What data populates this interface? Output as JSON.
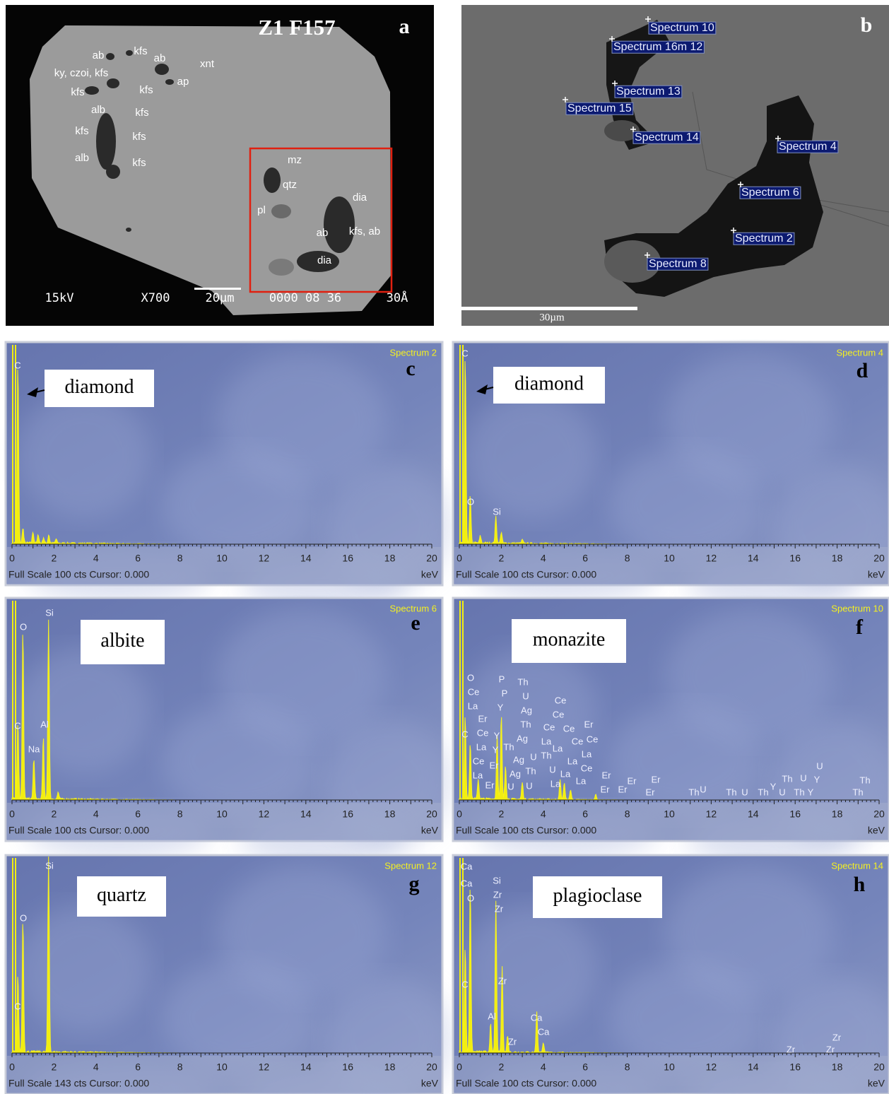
{
  "panel_a": {
    "title": "Z1 F157",
    "letter": "a",
    "labels": [
      "ab",
      "kfs",
      "ab",
      "xnt",
      "ky, czoi, kfs",
      "kfs",
      "kfs",
      "ap",
      "alb",
      "kfs",
      "kfs",
      "kfs",
      "alb",
      "kfs",
      "mz",
      "qtz",
      "pl",
      "dia",
      "ab",
      "kfs, ab",
      "dia"
    ],
    "footer": [
      "15kV",
      "X700",
      "20µm",
      "0000 08 36",
      "30Å"
    ]
  },
  "panel_b": {
    "letter": "b",
    "labels": [
      "Spectrum 10",
      "Spectrum 16m 12",
      "Spectrum 13",
      "Spectrum 15",
      "Spectrum 14",
      "Spectrum 4",
      "Spectrum 6",
      "Spectrum 2",
      "Spectrum 8"
    ],
    "scale": "30µm"
  },
  "spectra": [
    {
      "letter": "c",
      "spectrum": "Spectrum 2",
      "mineral": "diamond",
      "peak_labels": [
        "C"
      ],
      "x_ticks": [
        0,
        2,
        4,
        6,
        8,
        10,
        12,
        14,
        16,
        18,
        20
      ],
      "unit": "keV",
      "footer": "Full Scale 100 cts Cursor: 0.000"
    },
    {
      "letter": "d",
      "spectrum": "Spectrum 4",
      "mineral": "diamond",
      "peak_labels": [
        "C",
        "O",
        "Si"
      ],
      "x_ticks": [
        0,
        2,
        4,
        6,
        8,
        10,
        12,
        14,
        16,
        18,
        20
      ],
      "unit": "keV",
      "footer": "Full Scale 100 cts Cursor: 0.000"
    },
    {
      "letter": "e",
      "spectrum": "Spectrum 6",
      "mineral": "albite",
      "peak_labels": [
        "Si",
        "O",
        "C",
        "Al",
        "Na"
      ],
      "x_ticks": [
        0,
        2,
        4,
        6,
        8,
        10,
        12,
        14,
        16,
        18,
        20
      ],
      "unit": "keV",
      "footer": "Full Scale 100 cts Cursor: 0.000"
    },
    {
      "letter": "f",
      "spectrum": "Spectrum 10",
      "mineral": "monazite",
      "peak_labels": [
        "O",
        "Ce",
        "La",
        "Er",
        "Ce",
        "La",
        "Ce",
        "La",
        "Er",
        "C",
        "P",
        "P",
        "Y",
        "Y",
        "Y",
        "Er",
        "Th",
        "U",
        "Ag",
        "Th",
        "Ag",
        "Th",
        "Ag",
        "Ag",
        "U",
        "U",
        "Th",
        "U",
        "Th",
        "Ce",
        "Ce",
        "Ce",
        "La",
        "La",
        "Ce",
        "Er",
        "Ce",
        "Ce",
        "La",
        "La",
        "Ce",
        "U",
        "La",
        "La",
        "La",
        "Er",
        "Er",
        "Er",
        "Er",
        "Er",
        "Er",
        "Th",
        "U",
        "Th",
        "U",
        "Th",
        "Y",
        "U",
        "Th",
        "U",
        "Th",
        "Y",
        "Y",
        "U",
        "Th",
        "Th"
      ],
      "x_ticks": [
        0,
        2,
        4,
        6,
        8,
        10,
        12,
        14,
        16,
        18,
        20
      ],
      "unit": "keV",
      "footer": "Full Scale 100 cts Cursor: 0.000"
    },
    {
      "letter": "g",
      "spectrum": "Spectrum 12",
      "mineral": "quartz",
      "peak_labels": [
        "Si",
        "O",
        "C"
      ],
      "x_ticks": [
        0,
        2,
        4,
        6,
        8,
        10,
        12,
        14,
        16,
        18,
        20
      ],
      "unit": "keV",
      "footer": "Full Scale 143 cts Cursor: 0.000"
    },
    {
      "letter": "h",
      "spectrum": "Spectrum 14",
      "mineral": "plagioclase",
      "peak_labels": [
        "Ca",
        "Ca",
        "O",
        "Si",
        "Zr",
        "Zr",
        "C",
        "Zr",
        "Al",
        "Zr",
        "Ca",
        "Ca",
        "Zr",
        "Zr",
        "Zr"
      ],
      "x_ticks": [
        0,
        2,
        4,
        6,
        8,
        10,
        12,
        14,
        16,
        18,
        20
      ],
      "unit": "keV",
      "footer": "Full Scale 100 cts Cursor: 0.000"
    }
  ]
}
